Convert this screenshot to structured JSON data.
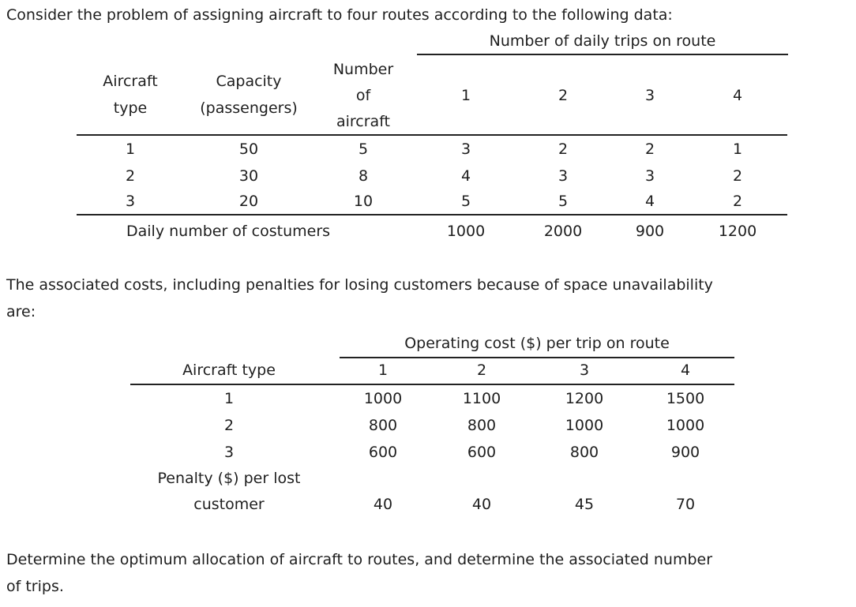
{
  "intro": "Consider the problem of assigning aircraft to four routes according to the following data:",
  "table1": {
    "group_header": "Number of daily trips on route",
    "headers": {
      "type_l1": "Aircraft",
      "type_l2": "type",
      "capacity_l1": "Capacity",
      "capacity_l2": "(passengers)",
      "number_l1": "Number",
      "number_l2": "of",
      "number_l3": "aircraft"
    },
    "routes": [
      "1",
      "2",
      "3",
      "4"
    ],
    "rows": [
      {
        "type": "1",
        "capacity": "50",
        "number": "5",
        "trips": [
          "3",
          "2",
          "2",
          "1"
        ]
      },
      {
        "type": "2",
        "capacity": "30",
        "number": "8",
        "trips": [
          "4",
          "3",
          "3",
          "2"
        ]
      },
      {
        "type": "3",
        "capacity": "20",
        "number": "10",
        "trips": [
          "5",
          "5",
          "4",
          "2"
        ]
      }
    ],
    "footer_label": "Daily number of costumers",
    "footer_values": [
      "1000",
      "2000",
      "900",
      "1200"
    ]
  },
  "mid_text_l1": "The associated costs, including penalties for losing customers because of space unavailability",
  "mid_text_l2": "are:",
  "table2": {
    "group_header": "Operating cost ($) per trip on route",
    "type_header": "Aircraft type",
    "routes": [
      "1",
      "2",
      "3",
      "4"
    ],
    "rows": [
      {
        "type": "1",
        "costs": [
          "1000",
          "1100",
          "1200",
          "1500"
        ]
      },
      {
        "type": "2",
        "costs": [
          "800",
          "800",
          "1000",
          "1000"
        ]
      },
      {
        "type": "3",
        "costs": [
          "600",
          "600",
          "800",
          "900"
        ]
      }
    ],
    "penalty_l1": "Penalty ($) per lost",
    "penalty_l2": "customer",
    "penalty_values": [
      "40",
      "40",
      "45",
      "70"
    ]
  },
  "closing_l1": "Determine the optimum allocation of aircraft to routes, and determine the associated number",
  "closing_l2": "of trips."
}
